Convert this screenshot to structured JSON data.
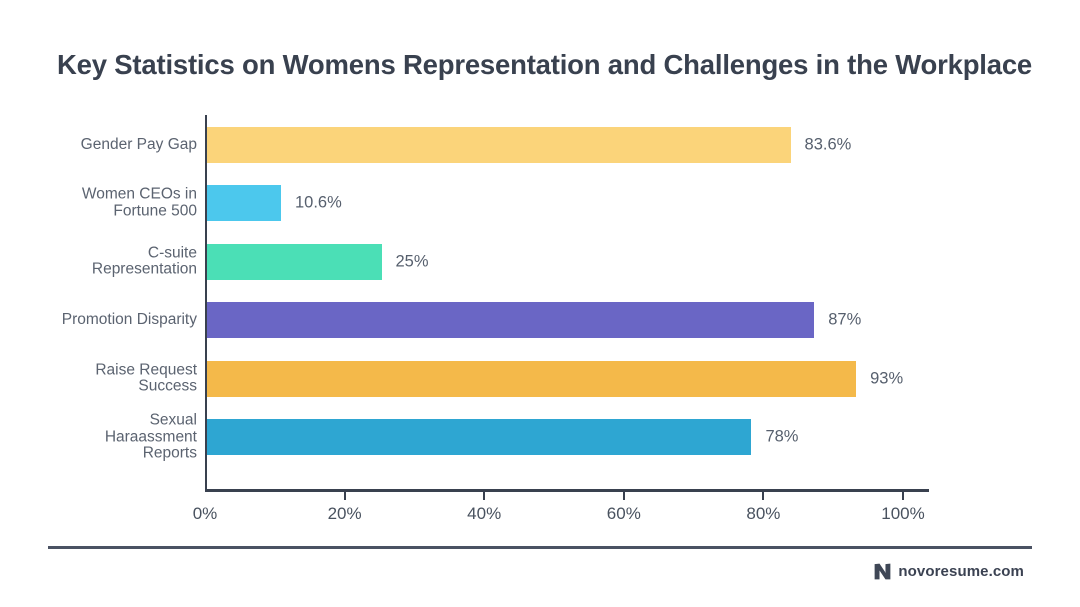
{
  "title": "Key Statistics on Womens Representation and Challenges in the Workplace",
  "footer": {
    "brand": "novoresume.com",
    "logo_icon": "novoresume-n-icon"
  },
  "chart_data": {
    "type": "bar",
    "orientation": "horizontal",
    "title": "Key Statistics on Womens Representation and Challenges in the Workplace",
    "categories": [
      "Gender Pay Gap",
      "Women CEOs in Fortune 500",
      "C-suite Representation",
      "Promotion Disparity",
      "Raise Request Success",
      "Sexual Haraassment Reports"
    ],
    "category_lines": [
      [
        "Gender Pay Gap"
      ],
      [
        "Women CEOs in",
        "Fortune 500"
      ],
      [
        "C-suite",
        "Representation"
      ],
      [
        "Promotion Disparity"
      ],
      [
        "Raise Request",
        "Success"
      ],
      [
        "Sexual",
        "Haraassment",
        "Reports"
      ]
    ],
    "values": [
      83.6,
      10.6,
      25,
      87,
      93,
      78
    ],
    "value_labels": [
      "83.6%",
      "10.6%",
      "25%",
      "87%",
      "93%",
      "78%"
    ],
    "bar_colors": [
      "#FBD47A",
      "#4CC8ED",
      "#4BDFB6",
      "#6A66C5",
      "#F4B94A",
      "#2EA6D2"
    ],
    "x_ticks": [
      {
        "label": "0%",
        "value": 0
      },
      {
        "label": "20%",
        "value": 20
      },
      {
        "label": "40%",
        "value": 40
      },
      {
        "label": "60%",
        "value": 60
      },
      {
        "label": "80%",
        "value": 80
      },
      {
        "label": "100%",
        "value": 100
      }
    ],
    "xlim": [
      0,
      100
    ],
    "xlabel": "",
    "ylabel": "",
    "grid": false,
    "legend": null,
    "axis_color": "#39414F",
    "text_color": "#5B6370"
  }
}
